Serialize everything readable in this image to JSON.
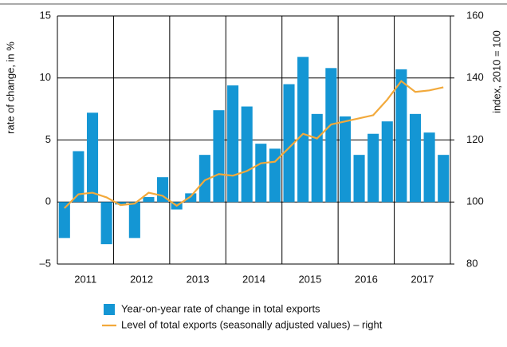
{
  "chart_data": {
    "type": "bar_line",
    "y_label": "rate of change, in %",
    "y2_label": "index, 2010 = 100",
    "groups": [
      "2011",
      "2012",
      "2013",
      "2014",
      "2015",
      "2016",
      "2017"
    ],
    "ylim": [
      -5,
      15
    ],
    "yticks": [
      {
        "value": -5,
        "label": "–5"
      },
      0,
      5,
      10,
      15
    ],
    "y2lim": [
      80,
      160
    ],
    "y2ticks": [
      80,
      100,
      120,
      140,
      160
    ],
    "grid": true,
    "series": [
      {
        "name": "Year-on-year rate of change in total exports",
        "type": "bar",
        "color": "#1496d4",
        "values": [
          -2.9,
          4.1,
          7.2,
          -3.4,
          -0.2,
          -2.9,
          0.4,
          2.0,
          -0.6,
          0.7,
          3.8,
          7.4,
          9.4,
          7.7,
          4.7,
          4.3,
          9.5,
          11.7,
          7.1,
          10.8,
          6.9,
          3.8,
          5.5,
          6.5,
          10.7,
          7.1,
          5.6,
          3.8
        ]
      },
      {
        "name": "Level of total exports (seasonally adjusted values) – right",
        "type": "line",
        "axis": "y2",
        "color": "#f2a93b",
        "values": [
          98,
          102.5,
          103,
          101.5,
          99,
          99.5,
          103,
          102,
          98.8,
          101.8,
          107,
          109,
          108.5,
          110,
          112.5,
          113,
          117.5,
          122,
          120.5,
          125,
          126,
          127,
          128,
          133,
          139,
          135.5,
          136,
          137
        ]
      }
    ]
  }
}
